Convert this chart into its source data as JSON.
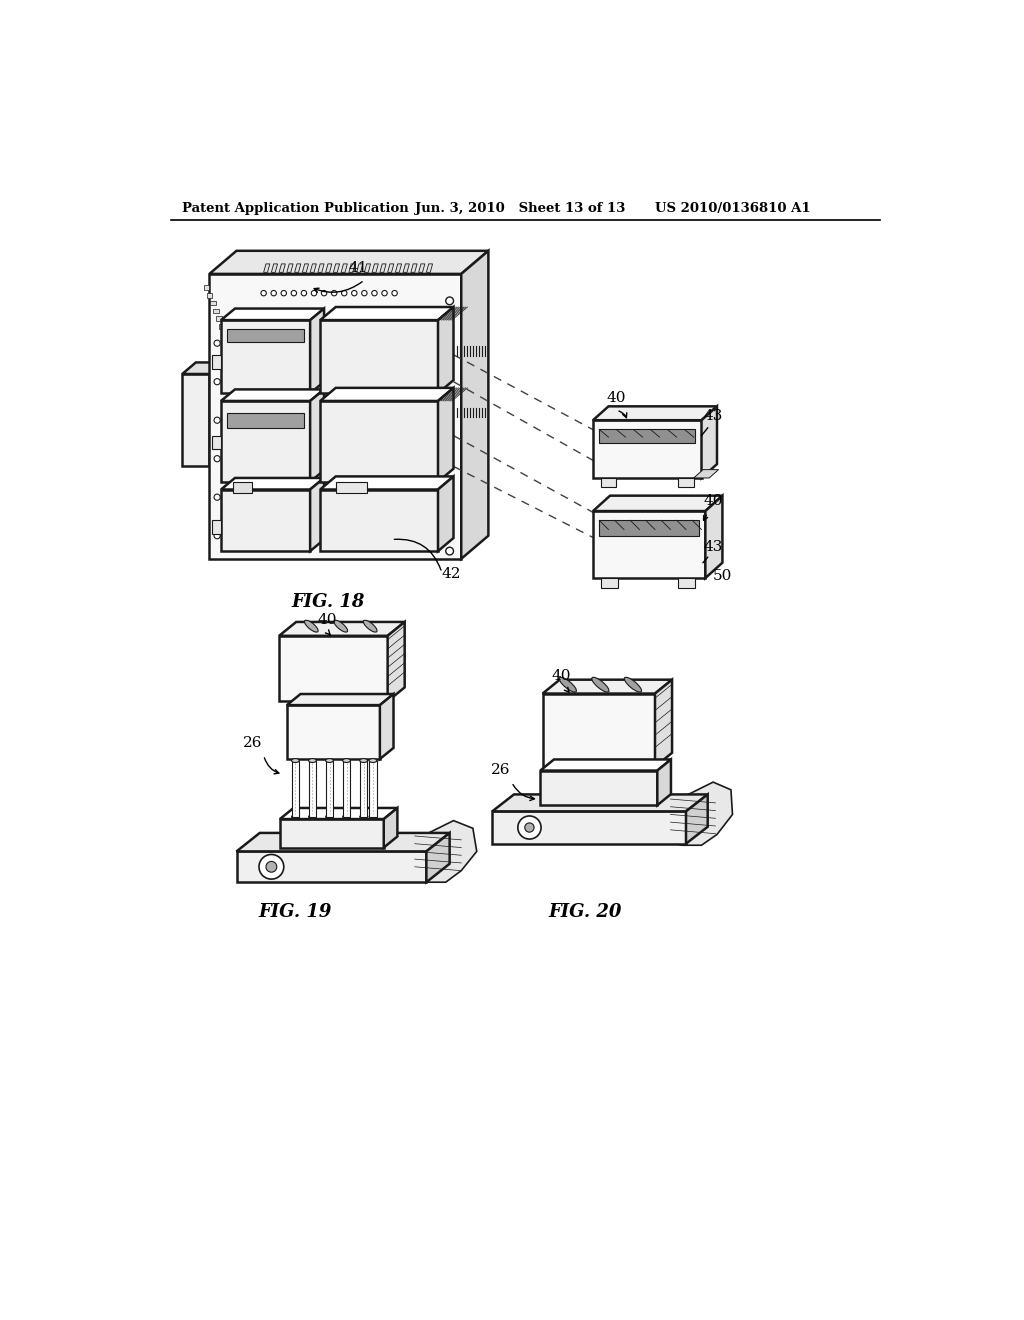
{
  "bg_color": "#ffffff",
  "header_left": "Patent Application Publication",
  "header_mid": "Jun. 3, 2010   Sheet 13 of 13",
  "header_right": "US 2010/0136810 A1",
  "fig18_label": "FIG. 18",
  "fig19_label": "FIG. 19",
  "fig20_label": "FIG. 20",
  "text_color": "#000000",
  "line_color": "#000000",
  "face_white": "#ffffff",
  "face_light": "#f0f0f0",
  "face_mid": "#e0e0e0",
  "face_dark": "#c8c8c8",
  "face_darker": "#b0b0b0",
  "ec": "#1a1a1a",
  "lw_thick": 1.8,
  "lw_thin": 1.0,
  "lw_hair": 0.7
}
